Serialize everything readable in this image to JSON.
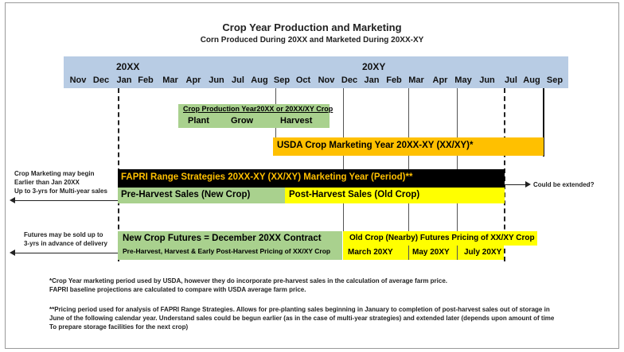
{
  "title": "Crop Year Production and Marketing",
  "subtitle": "Corn Produced During 20XX and Marketed During 20XX-XY",
  "timeline": {
    "year1": "20XX",
    "year2": "20XY",
    "months": [
      "Nov",
      "Dec",
      "Jan",
      "Feb",
      "Mar",
      "Apr",
      "Jun",
      "Jul",
      "Aug",
      "Sep",
      "Oct",
      "Nov",
      "Dec",
      "Jan",
      "Feb",
      "Mar",
      "Apr",
      "May",
      "Jun",
      "Jul",
      "Aug",
      "Sep"
    ]
  },
  "production": {
    "heading": "Crop Production Year20XX or 20XX/XY Crop",
    "plant": "Plant",
    "grow": "Grow",
    "harvest": "Harvest"
  },
  "usda": {
    "label": "USDA Crop Marketing Year 20XX-XY (XX/XY)*"
  },
  "fapri": {
    "label": "FAPRI Range Strategies 20XX-XY (XX/XY) Marketing Year (Period)**",
    "extended_note": "Could be extended?",
    "pre_harvest": "Pre-Harvest Sales (New Crop)",
    "post_harvest": "Post-Harvest Sales (Old Crop)"
  },
  "left_notes": {
    "marketing_line1": "Crop Marketing may begin",
    "marketing_line2": "Earlier than Jan 20XX",
    "marketing_line3": "Up to 3-yrs for Multi-year sales",
    "futures_line1": "Futures may be sold up to",
    "futures_line2": "3-yrs in advance of delivery"
  },
  "futures": {
    "new_crop_title": "New Crop Futures = December 20XX Contract",
    "new_crop_sub": "Pre-Harvest, Harvest & Early Post-Harvest Pricing of XX/XY Crop",
    "old_crop_title": "Old Crop (Nearby) Futures  Pricing of XX/XY Crop",
    "contracts": [
      "March 20XY",
      "May 20XY",
      "July 20XY"
    ]
  },
  "footnotes": {
    "f1_line1": "*Crop Year marketing period used by USDA, however they do incorporate pre-harvest sales in the calculation of average farm price.",
    "f1_line2": " FAPRI baseline projections are calculated to compare with USDA average farm price.",
    "f2_line1": "**Pricing period used for analysis of FAPRI Range Strategies.  Allows for pre-planting sales beginning in January to completion of post-harvest sales out of storage in",
    "f2_line2": "June of the following calendar year.  Understand sales could be begun earlier (as in the case of multi-year strategies) and extended later (depends upon amount of time",
    "f2_line3": "To prepare storage facilities for the next crop)"
  },
  "colors": {
    "month_bar": "#b8cce4",
    "green": "#a9d18e",
    "orange": "#ffc000",
    "yellow": "#ffff00",
    "black": "#000000"
  }
}
